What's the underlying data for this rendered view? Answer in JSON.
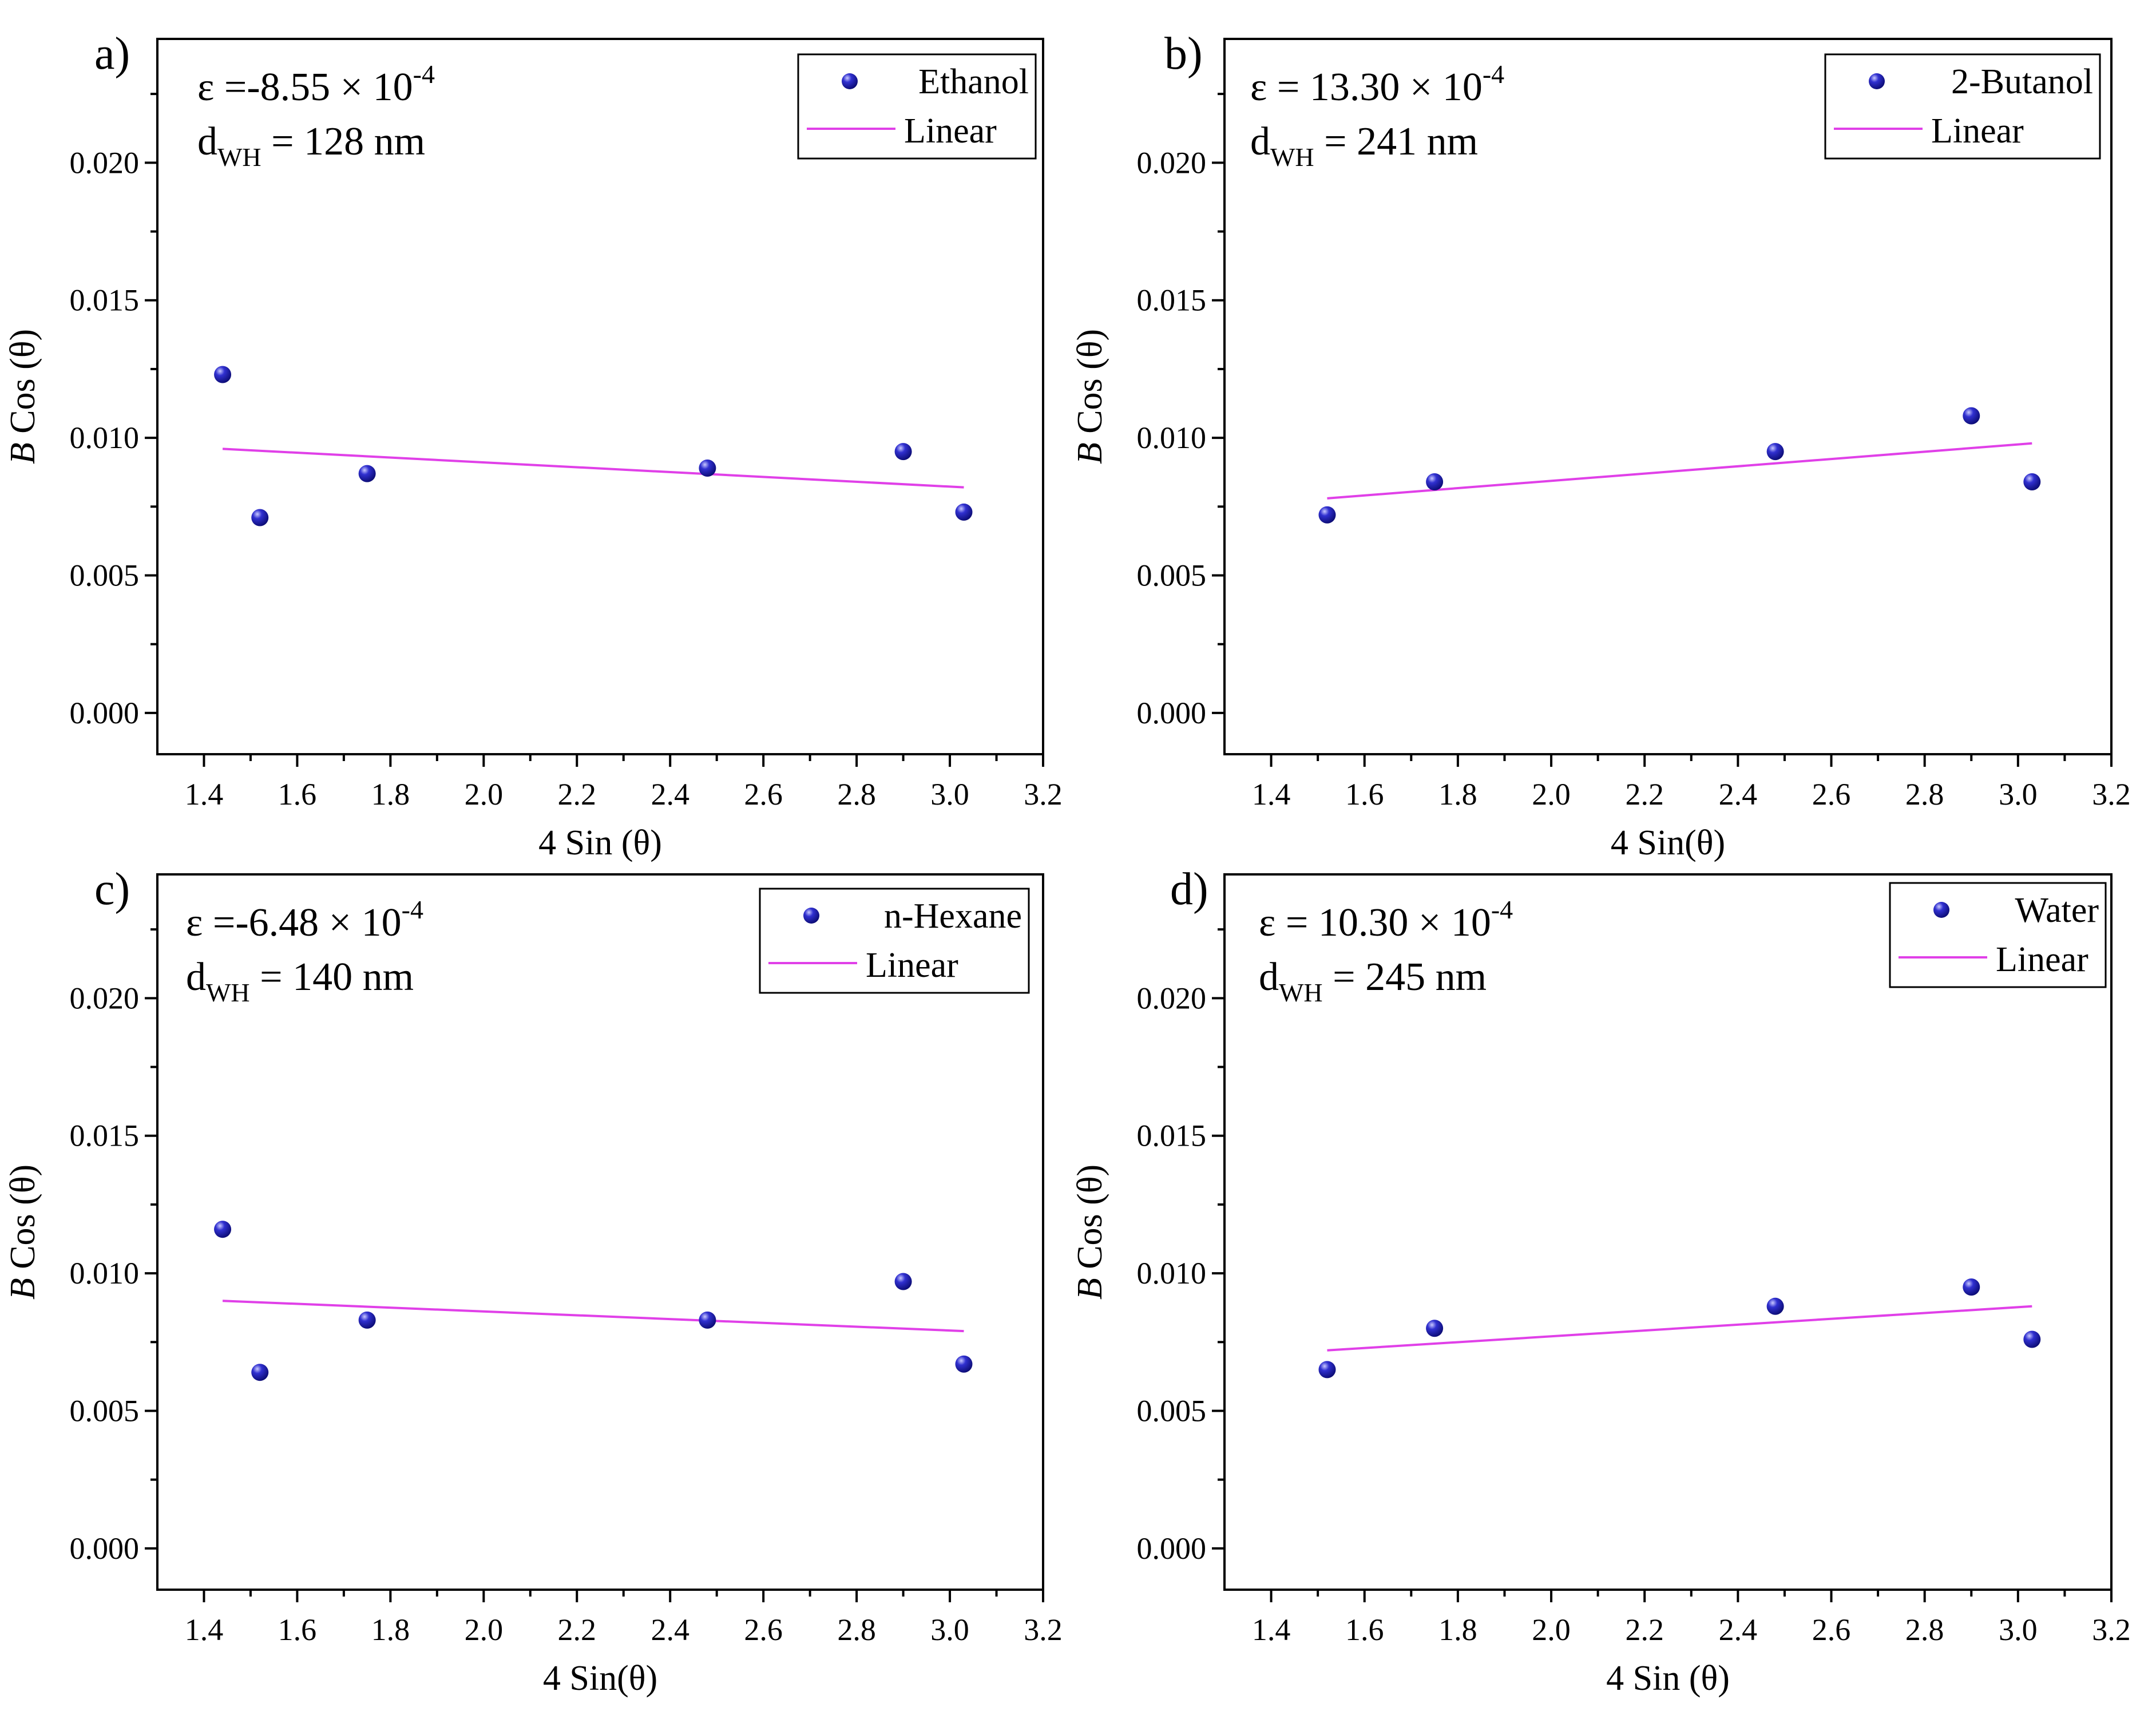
{
  "colors": {
    "marker": "#1414a0",
    "fit_line": "#e040e8",
    "axis": "#000000"
  },
  "chart_data": [
    {
      "type": "scatter",
      "panel_label": "a)",
      "xlabel": "4 Sin (θ)",
      "ylabel_italic": "B",
      "ylabel_rest": " Cos (θ)",
      "xlim": [
        1.3,
        3.2
      ],
      "ylim": [
        -0.0015,
        0.0245
      ],
      "xticks": [
        1.4,
        1.6,
        1.8,
        2.0,
        2.2,
        2.4,
        2.6,
        2.8,
        3.0,
        3.2
      ],
      "xtick_labels": [
        "1.4",
        "1.6",
        "1.8",
        "2.0",
        "2.2",
        "2.4",
        "2.6",
        "2.8",
        "3.0",
        "3.2"
      ],
      "yticks": [
        0.0,
        0.005,
        0.01,
        0.015,
        0.02
      ],
      "ytick_labels": [
        "0.000",
        "0.005",
        "0.010",
        "0.015",
        "0.020"
      ],
      "series_name": "Ethanol",
      "fit_name": "Linear",
      "x": [
        1.44,
        1.52,
        1.75,
        2.48,
        2.9,
        3.03
      ],
      "y": [
        0.0123,
        0.0071,
        0.0087,
        0.0089,
        0.0095,
        0.0073
      ],
      "fit": {
        "x": [
          1.44,
          3.03
        ],
        "y": [
          0.0096,
          0.0082
        ]
      },
      "strain_prefix": "ε =",
      "strain_value": "-8.55 × 10",
      "strain_exp": "-4",
      "size_sym": "d",
      "size_sub": "WH",
      "size_value": " = 128 nm",
      "legend_position": "top-right"
    },
    {
      "type": "scatter",
      "panel_label": "b)",
      "xlabel": "4 Sin(θ)",
      "ylabel_italic": "B",
      "ylabel_rest": " Cos (θ)",
      "xlim": [
        1.3,
        3.2
      ],
      "ylim": [
        -0.0015,
        0.0245
      ],
      "xticks": [
        1.4,
        1.6,
        1.8,
        2.0,
        2.2,
        2.4,
        2.6,
        2.8,
        3.0,
        3.2
      ],
      "xtick_labels": [
        "1.4",
        "1.6",
        "1.8",
        "2.0",
        "2.2",
        "2.4",
        "2.6",
        "2.8",
        "3.0",
        "3.2"
      ],
      "yticks": [
        0.0,
        0.005,
        0.01,
        0.015,
        0.02
      ],
      "ytick_labels": [
        "0.000",
        "0.005",
        "0.010",
        "0.015",
        "0.020"
      ],
      "series_name": "2-Butanol",
      "fit_name": "Linear",
      "x": [
        1.52,
        1.75,
        2.48,
        2.9,
        3.03
      ],
      "y": [
        0.0072,
        0.0084,
        0.0095,
        0.0108,
        0.0084
      ],
      "fit": {
        "x": [
          1.52,
          3.03
        ],
        "y": [
          0.0078,
          0.0098
        ]
      },
      "strain_prefix": "ε =",
      "strain_value": " 13.30 × 10",
      "strain_exp": "-4",
      "size_sym": "d",
      "size_sub": "WH",
      "size_value": " = 241 nm",
      "legend_position": "top-right"
    },
    {
      "type": "scatter",
      "panel_label": "c)",
      "xlabel": "4 Sin(θ)",
      "ylabel_italic": "B",
      "ylabel_rest": " Cos (θ)",
      "xlim": [
        1.3,
        3.2
      ],
      "ylim": [
        -0.0015,
        0.0245
      ],
      "xticks": [
        1.4,
        1.6,
        1.8,
        2.0,
        2.2,
        2.4,
        2.6,
        2.8,
        3.0,
        3.2
      ],
      "xtick_labels": [
        "1.4",
        "1.6",
        "1.8",
        "2.0",
        "2.2",
        "2.4",
        "2.6",
        "2.8",
        "3.0",
        "3.2"
      ],
      "yticks": [
        0.0,
        0.005,
        0.01,
        0.015,
        0.02
      ],
      "ytick_labels": [
        "0.000",
        "0.005",
        "0.010",
        "0.015",
        "0.020"
      ],
      "series_name": "n-Hexane",
      "fit_name": "Linear",
      "x": [
        1.44,
        1.52,
        1.75,
        2.48,
        2.9,
        3.03
      ],
      "y": [
        0.0116,
        0.0064,
        0.0083,
        0.0083,
        0.0097,
        0.0067
      ],
      "fit": {
        "x": [
          1.44,
          3.03
        ],
        "y": [
          0.009,
          0.0079
        ]
      },
      "strain_prefix": "ε =",
      "strain_value": "-6.48 × 10",
      "strain_exp": "-4",
      "size_sym": "d",
      "size_sub": "WH",
      "size_value": " = 140 nm",
      "legend_position": "top-right"
    },
    {
      "type": "scatter",
      "panel_label": "d)",
      "xlabel": "4 Sin (θ)",
      "ylabel_italic": "B",
      "ylabel_rest": " Cos (θ)",
      "xlim": [
        1.3,
        3.2
      ],
      "ylim": [
        -0.0015,
        0.0245
      ],
      "xticks": [
        1.4,
        1.6,
        1.8,
        2.0,
        2.2,
        2.4,
        2.6,
        2.8,
        3.0,
        3.2
      ],
      "xtick_labels": [
        "1.4",
        "1.6",
        "1.8",
        "2.0",
        "2.2",
        "2.4",
        "2.6",
        "2.8",
        "3.0",
        "3.2"
      ],
      "yticks": [
        0.0,
        0.005,
        0.01,
        0.015,
        0.02
      ],
      "ytick_labels": [
        "0.000",
        "0.005",
        "0.010",
        "0.015",
        "0.020"
      ],
      "series_name": "Water",
      "fit_name": "Linear",
      "x": [
        1.52,
        1.75,
        2.48,
        2.9,
        3.03
      ],
      "y": [
        0.0065,
        0.008,
        0.0088,
        0.0095,
        0.0076
      ],
      "fit": {
        "x": [
          1.52,
          3.03
        ],
        "y": [
          0.0072,
          0.0088
        ]
      },
      "strain_prefix": "ε =",
      "strain_value": " 10.30 × 10",
      "strain_exp": "-4",
      "size_sym": "d",
      "size_sub": "WH",
      "size_value": " = 245 nm",
      "legend_position": "top-right"
    }
  ]
}
